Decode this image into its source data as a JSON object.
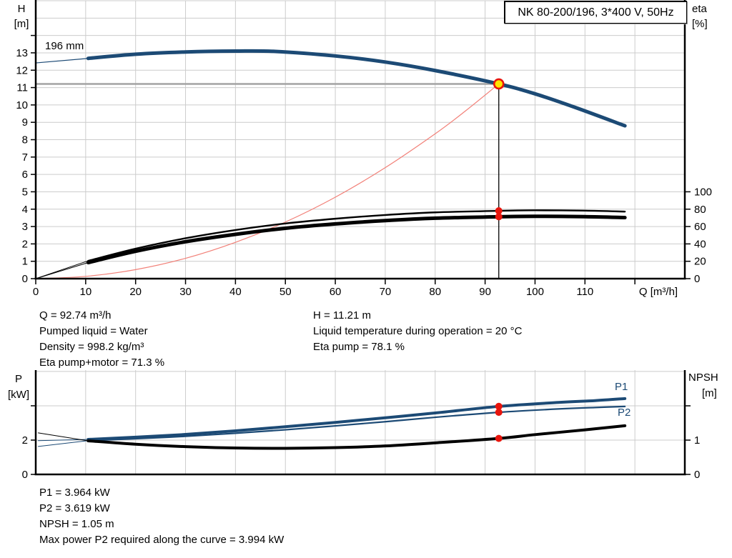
{
  "header": {
    "title": "NK 80-200/196, 3*400 V, 50Hz"
  },
  "colors": {
    "curve_blue": "#1c4a75",
    "system_curve": "#f28078",
    "marker_red": "#e8150d",
    "duty_yellow": "#ffe400",
    "grid": "#cccccc",
    "duty_guide_gray": "#a3a3a3",
    "axis_black": "#000000"
  },
  "top_chart": {
    "left_axis_title": "H",
    "left_axis_unit": "[m]",
    "right_axis_title": "eta",
    "right_axis_unit": "[%]",
    "impeller_label": "196 mm"
  },
  "bottom_chart": {
    "left_axis_title": "P",
    "left_axis_unit": "[kW]",
    "right_axis_title": "NPSH",
    "right_axis_unit": "[m]",
    "p1_label": "P1",
    "p2_label": "P2"
  },
  "info": {
    "top_left": [
      "Q = 92.74 m³/h",
      "Pumped liquid = Water",
      "Density = 998.2 kg/m³",
      "Eta pump+motor = 71.3 %"
    ],
    "top_right": [
      "H = 11.21 m",
      "Liquid temperature during operation = 20 °C",
      "Eta pump = 78.1 %"
    ],
    "bottom": [
      "P1 = 3.964 kW",
      "P2 = 3.619 kW",
      "NPSH = 1.05 m",
      "Max power P2 required along the curve = 3.994 kW"
    ]
  },
  "chart_data": [
    {
      "type": "line",
      "title": "QH pump curve with efficiency, NK 80-200/196",
      "x": {
        "label": "Q [m³/h]",
        "min": 0,
        "max": 130,
        "grid_step": 10,
        "tick_labels": [
          0,
          10,
          20,
          30,
          40,
          50,
          60,
          70,
          80,
          90,
          100,
          110
        ]
      },
      "y_left": {
        "label": "H [m]",
        "min": 0,
        "max": 16,
        "grid_step": 1,
        "tick_labels": [
          0,
          1,
          2,
          3,
          4,
          5,
          6,
          7,
          8,
          9,
          10,
          11,
          12,
          13
        ],
        "ticks_to": 14
      },
      "y_right": {
        "label": "eta [%]",
        "min": 0,
        "max": 100,
        "tick_labels": [
          0,
          20,
          40,
          60,
          80,
          100
        ],
        "scale_note": "eta 100 % aligns with H = 5 m",
        "legend_position": "none",
        "grid": true
      },
      "duty_point": {
        "q": 92.74,
        "h": 11.21,
        "eta_pump": 78.1,
        "eta_pump_motor": 71.3
      },
      "series": [
        {
          "name": "head-196mm-extension",
          "axis": "left",
          "color": "blue",
          "width": 1.2,
          "points": [
            [
              0,
              12.42
            ],
            [
              10.5,
              12.68
            ]
          ]
        },
        {
          "name": "head-196mm",
          "axis": "left",
          "color": "blue",
          "width": 5,
          "points": [
            [
              10.5,
              12.68
            ],
            [
              20,
              12.92
            ],
            [
              30,
              13.05
            ],
            [
              40,
              13.1
            ],
            [
              48,
              13.08
            ],
            [
              60,
              12.82
            ],
            [
              70,
              12.47
            ],
            [
              80,
              11.98
            ],
            [
              92.74,
              11.21
            ],
            [
              100,
              10.64
            ],
            [
              108,
              9.86
            ],
            [
              118,
              8.8
            ]
          ]
        },
        {
          "name": "system-curve",
          "axis": "left",
          "color": "light_red",
          "width": 1.2,
          "points": [
            [
              0,
              0
            ],
            [
              10,
              0.13
            ],
            [
              20,
              0.52
            ],
            [
              30,
              1.17
            ],
            [
              40,
              2.09
            ],
            [
              50,
              3.26
            ],
            [
              60,
              4.69
            ],
            [
              70,
              6.39
            ],
            [
              80,
              8.34
            ],
            [
              86,
              9.64
            ],
            [
              92.74,
              11.21
            ]
          ]
        },
        {
          "name": "eta-pump-extension",
          "axis": "right",
          "color": "black",
          "width": 1,
          "points": [
            [
              0,
              0
            ],
            [
              10.5,
              20.5
            ]
          ]
        },
        {
          "name": "eta-pump",
          "axis": "right",
          "color": "black",
          "width": 2.4,
          "points": [
            [
              10.5,
              20.5
            ],
            [
              20,
              34.5
            ],
            [
              30,
              46.5
            ],
            [
              40,
              56
            ],
            [
              50,
              63.5
            ],
            [
              60,
              69
            ],
            [
              70,
              73.3
            ],
            [
              80,
              76.3
            ],
            [
              92.74,
              78.1
            ],
            [
              100,
              78.7
            ],
            [
              110,
              78.3
            ],
            [
              118,
              77.2
            ]
          ]
        },
        {
          "name": "eta-pump-motor-extension",
          "axis": "right",
          "color": "black",
          "width": 1,
          "points": [
            [
              0,
              0
            ],
            [
              10.5,
              18.5
            ]
          ]
        },
        {
          "name": "eta-pump-motor",
          "axis": "right",
          "color": "black",
          "width": 5,
          "points": [
            [
              10.5,
              18.5
            ],
            [
              20,
              31.5
            ],
            [
              30,
              42.5
            ],
            [
              40,
              51
            ],
            [
              50,
              58
            ],
            [
              60,
              63
            ],
            [
              70,
              66.8
            ],
            [
              80,
              69.6
            ],
            [
              92.74,
              71.3
            ],
            [
              100,
              71.8
            ],
            [
              110,
              71.4
            ],
            [
              118,
              70.3
            ]
          ]
        }
      ]
    },
    {
      "type": "line",
      "title": "Power and NPSH curves",
      "x": {
        "label": "",
        "min": 0,
        "max": 130,
        "grid_step": 10,
        "tick_labels": []
      },
      "y_left": {
        "label": "P [kW]",
        "min": 0,
        "max": 6.08,
        "grid_step": 2,
        "tick_labels": [
          0,
          2
        ],
        "ticks_at": [
          0,
          2,
          4
        ]
      },
      "y_right": {
        "label": "NPSH [m]",
        "min": 0,
        "max": 3.04,
        "tick_labels": [
          0,
          1
        ],
        "ticks_at": [
          0,
          1,
          2
        ],
        "legend_position": "inline-right",
        "grid": true
      },
      "duty_values": {
        "q": 92.74,
        "p1": 3.964,
        "p2": 3.619,
        "npsh": 1.05
      },
      "series": [
        {
          "name": "p1-extension",
          "axis": "left",
          "color": "blue",
          "width": 1,
          "points": [
            [
              0.5,
              1.97
            ],
            [
              10.5,
              2.04
            ]
          ]
        },
        {
          "name": "p1",
          "axis": "left",
          "color": "blue",
          "width": 4,
          "points": [
            [
              10.5,
              2.04
            ],
            [
              20,
              2.17
            ],
            [
              30,
              2.33
            ],
            [
              40,
              2.54
            ],
            [
              50,
              2.78
            ],
            [
              60,
              3.03
            ],
            [
              70,
              3.3
            ],
            [
              80,
              3.58
            ],
            [
              92.74,
              3.964
            ],
            [
              105,
              4.2
            ],
            [
              112,
              4.3
            ],
            [
              118,
              4.42
            ]
          ]
        },
        {
          "name": "p2-extension",
          "axis": "left",
          "color": "blue",
          "width": 1,
          "points": [
            [
              0.5,
              1.63
            ],
            [
              10.5,
              1.97
            ]
          ]
        },
        {
          "name": "p2",
          "axis": "left",
          "color": "blue",
          "width": 2.2,
          "points": [
            [
              10.5,
              1.97
            ],
            [
              20,
              2.08
            ],
            [
              30,
              2.22
            ],
            [
              40,
              2.4
            ],
            [
              50,
              2.6
            ],
            [
              60,
              2.83
            ],
            [
              70,
              3.07
            ],
            [
              80,
              3.33
            ],
            [
              92.74,
              3.619
            ],
            [
              105,
              3.82
            ],
            [
              112,
              3.9
            ],
            [
              118,
              3.96
            ]
          ]
        },
        {
          "name": "npsh-extension",
          "axis": "right",
          "color": "black",
          "width": 1,
          "points": [
            [
              0.5,
              1.21
            ],
            [
              10.5,
              0.98
            ]
          ]
        },
        {
          "name": "npsh",
          "axis": "right",
          "color": "black",
          "width": 4,
          "points": [
            [
              10.5,
              0.98
            ],
            [
              20,
              0.88
            ],
            [
              30,
              0.81
            ],
            [
              40,
              0.77
            ],
            [
              50,
              0.76
            ],
            [
              60,
              0.78
            ],
            [
              70,
              0.83
            ],
            [
              80,
              0.92
            ],
            [
              92.74,
              1.05
            ],
            [
              100,
              1.16
            ],
            [
              110,
              1.3
            ],
            [
              118,
              1.42
            ]
          ]
        }
      ]
    }
  ]
}
